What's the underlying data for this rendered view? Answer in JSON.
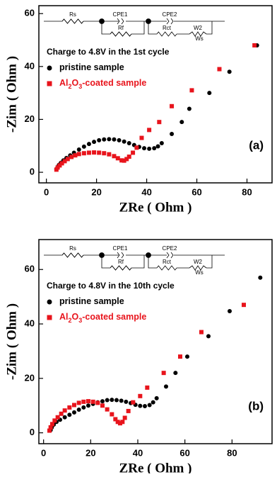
{
  "chart_data": [
    {
      "type": "scatter",
      "xlabel": "ZRe ( Ohm )",
      "ylabel": "-Zim ( Ohm )",
      "annotation": "Charge to 4.8V in the 1st cycle",
      "panel_label": "(a)",
      "inset_labels": [
        "Rs",
        "CPE1",
        "Rf",
        "CPE2",
        "Rct",
        "W2",
        "Ws"
      ],
      "xlim": [
        -3,
        90
      ],
      "ylim": [
        -4,
        63
      ],
      "xticks": [
        0,
        20,
        40,
        60,
        80
      ],
      "yticks": [
        0,
        20,
        40,
        60
      ],
      "series": [
        {
          "name": "pristine sample",
          "color": "#000000",
          "marker": "circle",
          "x": [
            4,
            4.5,
            5,
            5.8,
            6.8,
            8,
            9.5,
            11,
            13,
            15,
            17,
            19,
            21,
            23,
            25,
            27,
            29,
            31,
            33,
            35,
            37,
            39,
            41,
            43,
            44.5,
            46,
            50,
            54,
            57,
            65,
            73,
            84
          ],
          "values": [
            1.2,
            2,
            2.8,
            3.6,
            4.5,
            5.4,
            6.4,
            7.4,
            8.6,
            9.7,
            10.7,
            11.5,
            12.1,
            12.4,
            12.5,
            12.4,
            12.1,
            11.6,
            11,
            10.3,
            9.6,
            9.1,
            8.9,
            9.1,
            9.8,
            11,
            14.5,
            19,
            24,
            30,
            38,
            48
          ]
        },
        {
          "name": "Al2O3-coated sample",
          "color": "#e8141c",
          "marker": "square",
          "x": [
            4,
            4.5,
            5.3,
            6.2,
            7.3,
            8.5,
            10,
            11.5,
            13,
            15,
            17,
            19,
            21,
            23,
            25,
            27,
            28.5,
            30,
            31,
            32,
            33,
            34.5,
            36,
            38,
            41,
            45,
            50,
            58,
            69,
            83
          ],
          "values": [
            1,
            1.8,
            2.6,
            3.4,
            4.2,
            5,
            5.8,
            6.4,
            6.9,
            7.2,
            7.4,
            7.5,
            7.4,
            7.2,
            6.8,
            6.1,
            5.3,
            4.5,
            4.4,
            5,
            5.9,
            7.4,
            9.3,
            13,
            16,
            19,
            25,
            31,
            39,
            48
          ]
        }
      ]
    },
    {
      "type": "scatter",
      "xlabel": "ZRe ( Ohm )",
      "ylabel": "-Zim ( Ohm )",
      "annotation": "Charge to 4.8V in the 10th cycle",
      "panel_label": "(b)",
      "inset_labels": [
        "Rs",
        "CPE1",
        "Rf",
        "CPE2",
        "Rct",
        "W2",
        "Ws"
      ],
      "xlim": [
        -2,
        97
      ],
      "ylim": [
        -4,
        71
      ],
      "xticks": [
        0,
        20,
        40,
        60,
        80
      ],
      "yticks": [
        0,
        20,
        40,
        60
      ],
      "series": [
        {
          "name": "pristine sample",
          "color": "#000000",
          "marker": "circle",
          "x": [
            3,
            3.5,
            4.3,
            5.5,
            7,
            9,
            11,
            13,
            15,
            17,
            19,
            21,
            23,
            25,
            27,
            29,
            31,
            33,
            35,
            37,
            39,
            41,
            43,
            45,
            46.5,
            48,
            52,
            56,
            61,
            70,
            79,
            92
          ],
          "values": [
            1,
            2,
            3,
            4,
            4.8,
            5.7,
            6.6,
            7.5,
            8.5,
            9.3,
            10,
            10.6,
            11.2,
            11.6,
            12,
            12.1,
            12,
            11.8,
            11.4,
            10.9,
            10.3,
            9.9,
            9.8,
            10.2,
            11.2,
            12.7,
            17,
            22,
            28,
            35.5,
            44.7,
            57
          ]
        },
        {
          "name": "Al2O3-coated sample",
          "color": "#e8141c",
          "marker": "square",
          "x": [
            2.5,
            3,
            3.7,
            4.7,
            6,
            7.5,
            9,
            11,
            13,
            15,
            17,
            19,
            21,
            23,
            25,
            27,
            29,
            30.5,
            31.5,
            32.5,
            33.5,
            34.5,
            36,
            38,
            41,
            44,
            51,
            58,
            67,
            85
          ],
          "values": [
            0.8,
            2,
            3.2,
            4.5,
            5.7,
            7,
            8.2,
            9.3,
            10.2,
            11,
            11.4,
            11.6,
            11.4,
            11,
            10,
            8.6,
            6.8,
            5,
            4,
            3.5,
            4,
            5.5,
            8,
            11.2,
            13.5,
            16.6,
            22,
            28,
            37,
            47
          ]
        }
      ]
    }
  ]
}
